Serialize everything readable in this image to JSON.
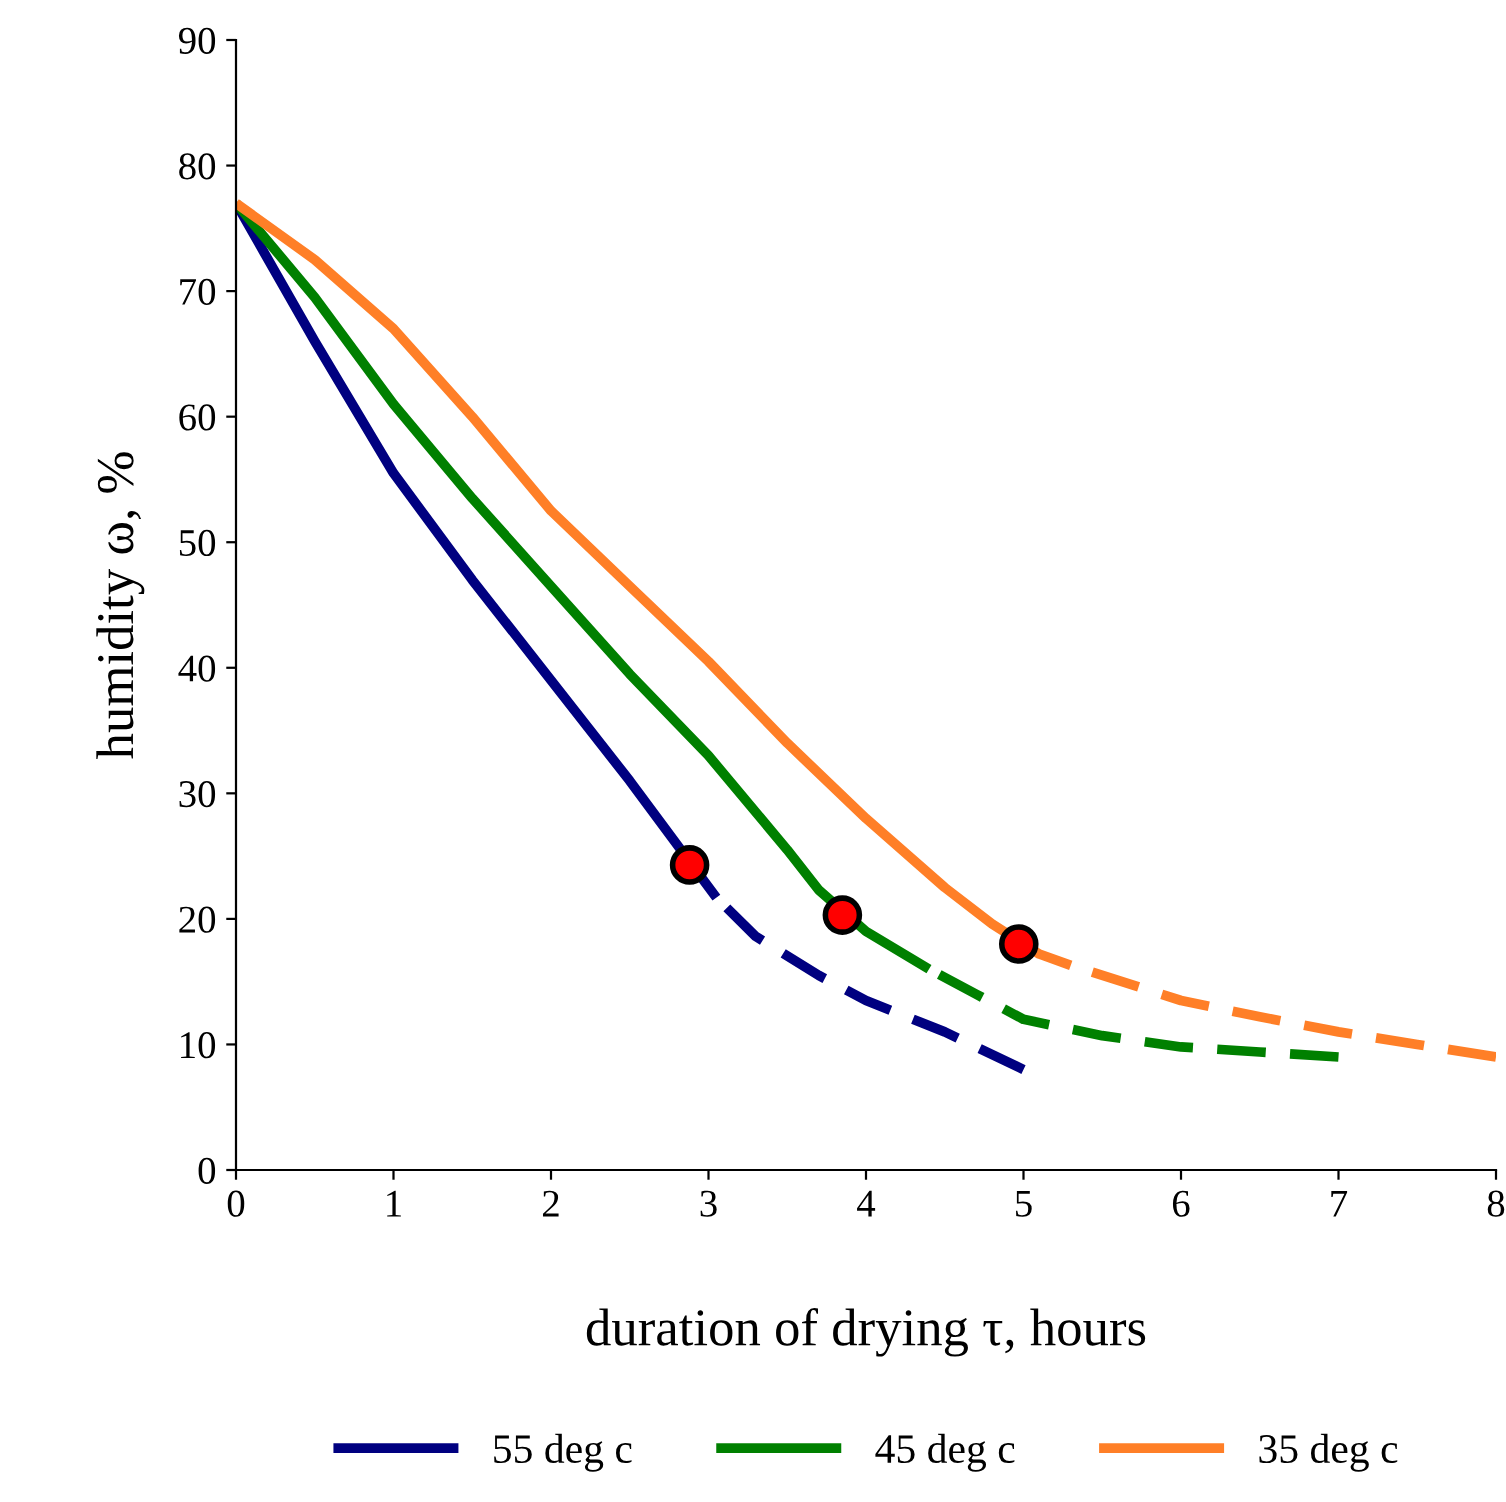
{
  "chart_data": {
    "type": "line",
    "xlabel": "duration of drying τ, hours",
    "ylabel": "humidity ω, %",
    "xlim": [
      0,
      8
    ],
    "ylim": [
      0,
      90
    ],
    "xticks": [
      0,
      1,
      2,
      3,
      4,
      5,
      6,
      7,
      8
    ],
    "yticks": [
      0,
      10,
      20,
      30,
      40,
      50,
      60,
      70,
      80,
      90
    ],
    "grid": false,
    "legend": "bottom",
    "marker": "none",
    "series": [
      {
        "name": "55 deg c",
        "color": "#000080",
        "line_style": "solid",
        "x": [
          0,
          0.5,
          1,
          1.5,
          2,
          2.5,
          3.05
        ],
        "values": [
          77,
          66,
          55.5,
          47,
          39,
          31,
          21.7
        ]
      },
      {
        "name": "45 deg c",
        "color": "#008000",
        "line_style": "solid",
        "x": [
          0,
          0.5,
          1,
          1.5,
          2,
          2.5,
          3,
          3.5,
          3.7,
          4,
          4.4
        ],
        "values": [
          77,
          69.5,
          61,
          53.5,
          46.5,
          39.5,
          33,
          25.5,
          22.3,
          19,
          16
        ]
      },
      {
        "name": "35 deg c",
        "color": "#ff7f27",
        "line_style": "solid",
        "x": [
          0,
          0.5,
          1,
          1.5,
          2,
          2.5,
          3,
          3.5,
          4,
          4.5,
          4.8,
          5.1,
          5.3
        ],
        "values": [
          77,
          72.5,
          67,
          60,
          52.5,
          46.5,
          40.5,
          34,
          28,
          22.5,
          19.6,
          17.2,
          16.3
        ]
      },
      {
        "color": "#000080",
        "line_style": "dashed",
        "x": [
          3.05,
          3.3,
          3.7,
          4,
          4.5,
          5
        ],
        "values": [
          21.7,
          18.6,
          15.5,
          13.5,
          11,
          8
        ]
      },
      {
        "color": "#008000",
        "line_style": "dashed",
        "x": [
          4.4,
          4.7,
          5,
          5.5,
          6,
          6.5,
          7
        ],
        "values": [
          16,
          14,
          12,
          10.7,
          9.8,
          9.4,
          9
        ]
      },
      {
        "color": "#ff7f27",
        "line_style": "dashed",
        "x": [
          5.3,
          6,
          6.5,
          7,
          7.5,
          8
        ],
        "values": [
          16.3,
          13.5,
          12.2,
          11,
          10,
          9
        ]
      },
      {
        "type": "scatter",
        "color": "#ff0000",
        "marker": "circle",
        "x": [
          2.88,
          3.85,
          4.97
        ],
        "values": [
          24.3,
          20.3,
          18
        ]
      }
    ]
  }
}
